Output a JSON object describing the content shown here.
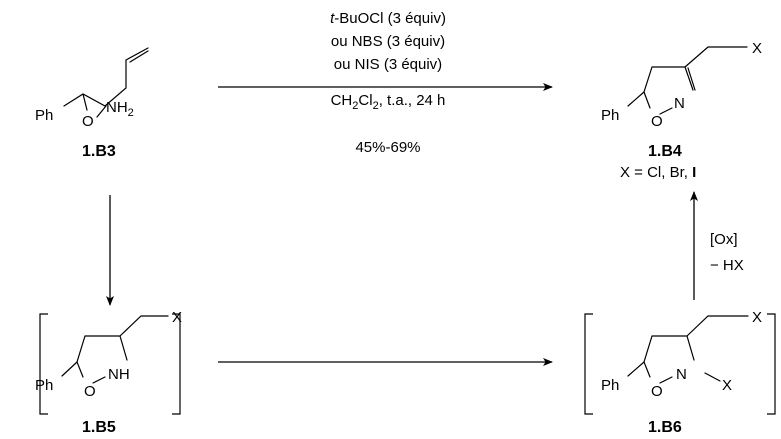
{
  "reaction": {
    "conditions": {
      "line1_italic": "t",
      "line1_rest": "-BuOCl (3 équiv)",
      "line2": "ou NBS (3 équiv)",
      "line3": "ou NIS (3 équiv)",
      "solvent_a": "CH",
      "solvent_sub1": "2",
      "solvent_b": "Cl",
      "solvent_sub2": "2",
      "solvent_rest": ", t.a., 24 h",
      "yield": "45%-69%"
    },
    "oxidation": {
      "reagent": "[Ox]",
      "byproduct": "− HX"
    }
  },
  "compounds": {
    "b3": {
      "id": "1.B3",
      "ph": "Ph",
      "o": "O",
      "nh2_a": "NH",
      "nh2_sub": "2"
    },
    "b4": {
      "id": "1.B4",
      "ph": "Ph",
      "o": "O",
      "n": "N",
      "x": "X",
      "x_legend_a": "X = Cl, Br, ",
      "x_legend_b": "I"
    },
    "b5": {
      "id": "1.B5",
      "ph": "Ph",
      "o": "O",
      "nh": "NH",
      "x": "X"
    },
    "b6": {
      "id": "1.B6",
      "ph": "Ph",
      "o": "O",
      "n": "N",
      "x_top": "X",
      "x_n": "X"
    }
  }
}
